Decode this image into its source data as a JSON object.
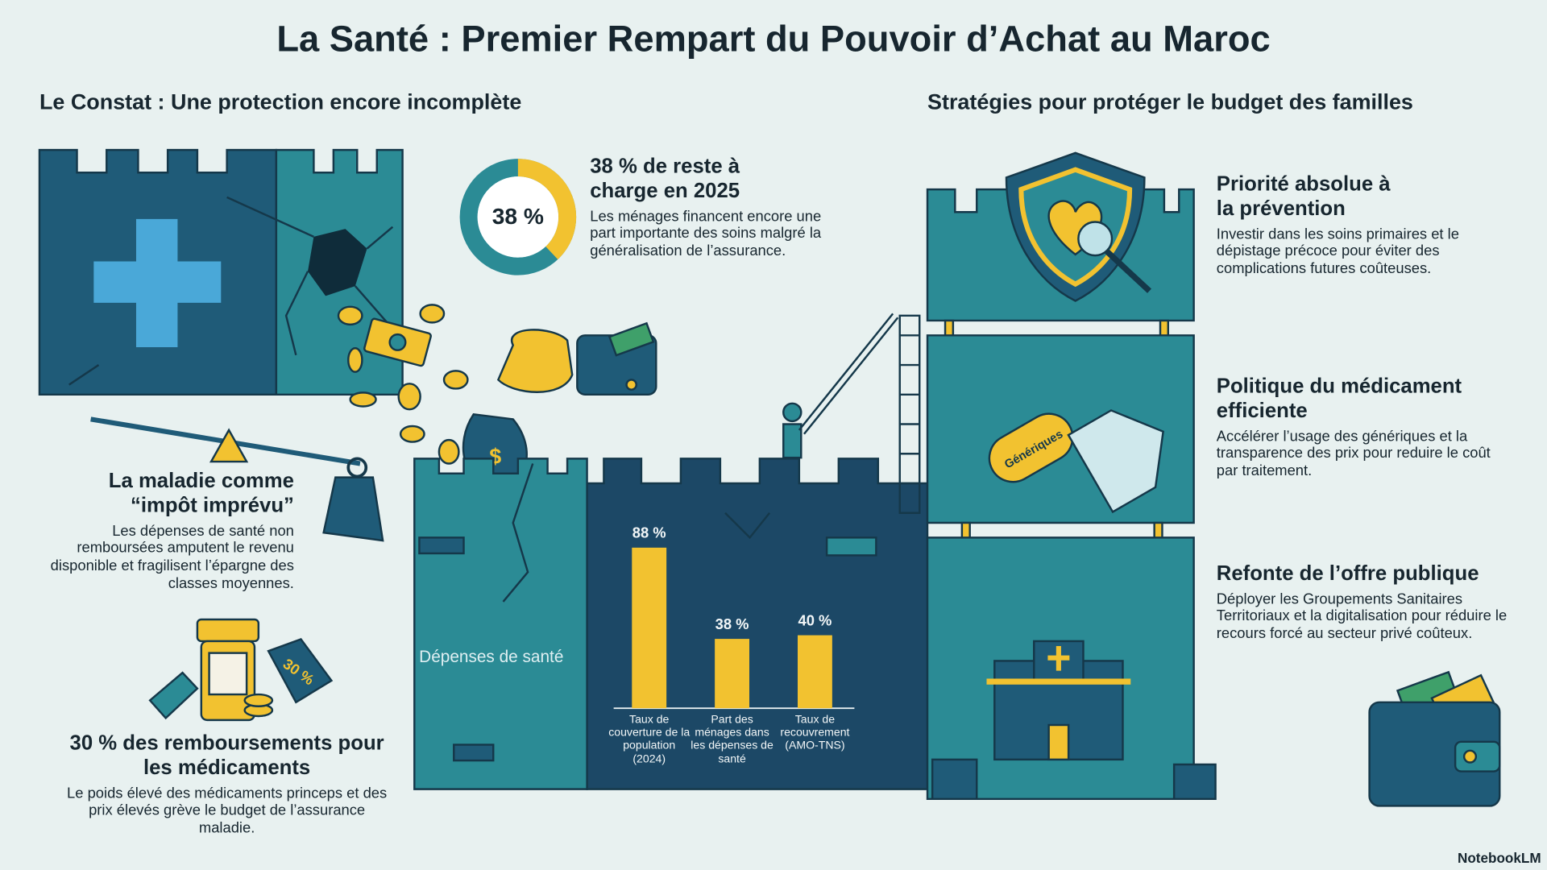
{
  "title": "La Santé : Premier Rempart du Pouvoir d’Achat au Maroc",
  "left_heading": "Le Constat : Une protection encore incomplète",
  "right_heading": "Stratégies pour protéger le budget des familles",
  "reste_a_charge": {
    "value": 38,
    "label": "38 %",
    "heading": "38 % de reste à charge en 2025",
    "text": "Les ménages financent encore une part importante des soins malgré la généralisation de l’assurance."
  },
  "impot_imprevu": {
    "heading": "La maladie comme “impôt imprévu”",
    "text": "Les dépenses de santé non remboursées amputent le revenu disponible et fragilisent l’épargne des classes moyennes."
  },
  "medicaments": {
    "tag": "30 %",
    "heading": "30 % des remboursements pour les médicaments",
    "text": "Le poids élevé des médicaments princeps et des prix élevés grève le budget de l’assurance maladie."
  },
  "chart_data": {
    "type": "bar",
    "title": "Dépenses de santé",
    "categories": [
      "Taux de couverture de la population (2024)",
      "Part des ménages dans les dépenses de santé",
      "Taux de recouvrement (AMO-TNS)"
    ],
    "values": [
      88,
      38,
      40
    ],
    "value_labels": [
      "88 %",
      "38 %",
      "40 %"
    ],
    "color": "#f2c230"
  },
  "strategies": [
    {
      "heading": "Priorité absolue à la prévention",
      "text": "Investir dans les soins primaires et le dépistage précoce pour éviter des complications futures coûteuses."
    },
    {
      "heading": "Politique du médicament efficiente",
      "text": "Accélérer l’usage des génériques et la transparence des prix pour reduire le coût par traitement."
    },
    {
      "heading": "Refonte de l’offre publique",
      "text": "Déployer les Groupements Sanitaires Territoriaux et la digitalisation pour réduire le recours forcé au secteur privé coûteux."
    }
  ],
  "pill_label": "Génériques",
  "footer": "NotebookLM"
}
